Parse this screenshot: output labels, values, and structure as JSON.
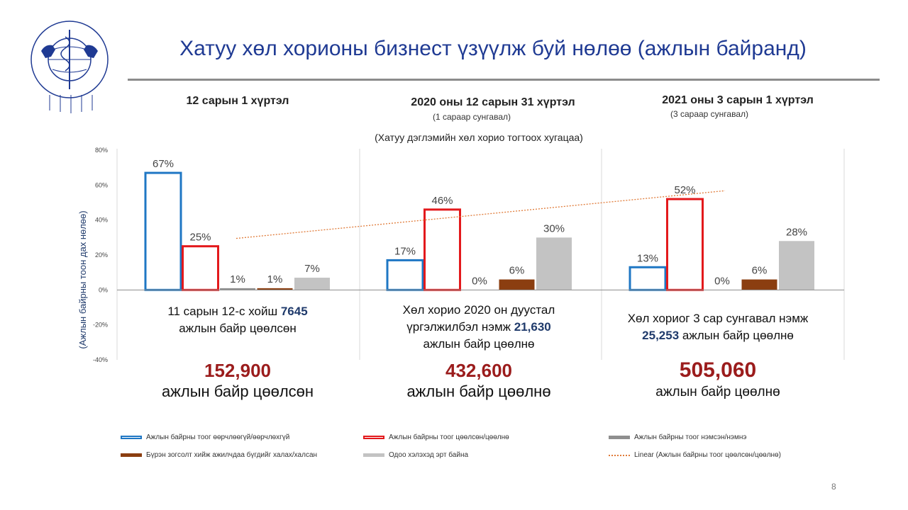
{
  "slide": {
    "title": "Хатуу хөл хорионы бизнест үзүүлж буй нөлөө (ажлын байранд)",
    "page_number": "8"
  },
  "periods": [
    {
      "heading": "12 сарын 1 хүртэл",
      "subheading": "",
      "desc_line1": "11 сарын 12-с хойш ",
      "desc_strong": "7645",
      "desc_line2": "ажлын байр цөөлсөн",
      "desc_suffix": "",
      "big_number": "152,900",
      "big_label": "ажлын байр цөөлсөн"
    },
    {
      "heading": "2020 оны 12 сарын 31 хүртэл",
      "subheading": "(1 сараар сунгавал)",
      "desc_line1": "Хөл хорио 2020 он дуустал",
      "desc_line2a": "үргэлжилбэл нэмж ",
      "desc_strong": "21,630",
      "desc_line3": "ажлын байр цөөлнө",
      "big_number": "432,600",
      "big_label": "ажлын байр цөөлнө"
    },
    {
      "heading": "2021 оны 3 сарын 1 хүртэл",
      "subheading": "(3 сараар сунгавал)",
      "desc_line1": "Хөл хориог 3 сар сунгавал нэмж",
      "desc_strong": "25,253",
      "desc_line2": " ажлын байр цөөлнө",
      "big_number": "505,060",
      "big_label": "ажлын байр цөөлнө"
    }
  ],
  "note": "(Хатуу дэглэмийн хөл хорио тогтоох хугацаа)",
  "colors": {
    "blue": "#1f77c4",
    "red": "#e3191c",
    "gray": "#8f8f8f",
    "brown": "#8b3e10",
    "lightgray": "#c3c3c3",
    "trend": "#e07b39"
  },
  "chart_data": {
    "type": "bar",
    "ylabel": "(Ажлын байрны тоон дах нөлөө)",
    "ylim": [
      -40,
      80
    ],
    "yticks": [
      80,
      60,
      40,
      20,
      0,
      -20,
      -40
    ],
    "ytick_labels": [
      "80%",
      "60%",
      "40%",
      "20%",
      "0%",
      "-20%",
      "-40%"
    ],
    "categories": [
      "12 сарын 1 хүртэл",
      "2020 оны 12 сарын 31 хүртэл",
      "2021 оны 3 сарын 1 хүртэл"
    ],
    "series": [
      {
        "name": "Ажлын байрны тоог өөрчлөөгүй/өөрчлөхгүй",
        "style": "outline-blue",
        "values": [
          67,
          17,
          13
        ],
        "labels": [
          "67%",
          "17%",
          "13%"
        ]
      },
      {
        "name": "Ажлын байрны тоог цөөлсөн/цөөлнө",
        "style": "outline-red",
        "values": [
          25,
          46,
          52
        ],
        "labels": [
          "25%",
          "46%",
          "52%"
        ]
      },
      {
        "name": "Ажлын байрны тоог нэмсэн/нэмнэ",
        "style": "gray",
        "values": [
          1,
          0,
          0
        ],
        "labels": [
          "1%",
          "0%",
          "0%"
        ]
      },
      {
        "name": "Бүрэн зогсолт хийж ажилчдаа бүгдийг халах/халсан",
        "style": "brown",
        "values": [
          1,
          6,
          6
        ],
        "labels": [
          "1%",
          "6%",
          "6%"
        ]
      },
      {
        "name": "Одоо хэлэхэд эрт байна",
        "style": "lightgray",
        "values": [
          7,
          30,
          28
        ],
        "labels": [
          "7%",
          "30%",
          "28%"
        ]
      }
    ],
    "trendline": {
      "name": "Linear (Ажлын байрны тоог цөөлсөн/цөөлнө)",
      "series": "Ажлын байрны тоог цөөлсөн/цөөлнө"
    }
  }
}
